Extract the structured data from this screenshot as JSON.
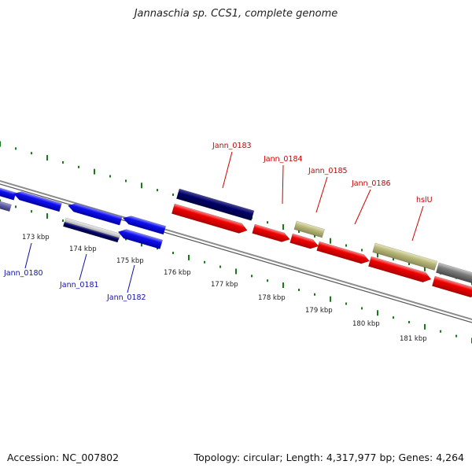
{
  "title": "Jannaschia sp. CCS1, complete genome",
  "footer": {
    "accession": "Accession: NC_007802",
    "summary": "Topology: circular; Length: 4,317,977 bp; Genes: 4,264"
  },
  "colors": {
    "forward_gene": "#ee0000",
    "forward_label": "#cc0000",
    "reverse_gene": "#1010ee",
    "reverse_label": "#1010aa",
    "dark_gene": "#000066",
    "pseudo_gene": "#b8b87a",
    "grey_gene": "#7a7a7a",
    "backbone": "#8a8a8a",
    "tick": "#1a7a1a"
  },
  "scale": {
    "labels": [
      "173 kbp",
      "174 kbp",
      "175 kbp",
      "176 kbp",
      "177 kbp",
      "178 kbp",
      "179 kbp",
      "180 kbp",
      "181 kbp"
    ]
  },
  "genes": {
    "forward_labels": [
      "Jann_0183",
      "Jann_0184",
      "Jann_0185",
      "Jann_0186",
      "hslU"
    ],
    "reverse_labels": [
      "Jann_0180",
      "Jann_0181",
      "Jann_0182"
    ]
  }
}
